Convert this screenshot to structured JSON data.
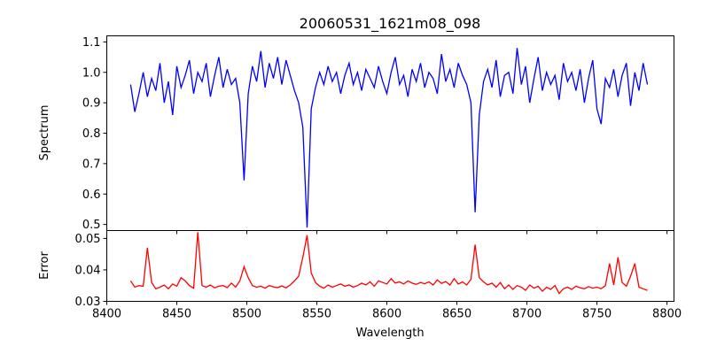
{
  "chart_data": [
    {
      "type": "line",
      "title": "20060531_1621m08_098",
      "ylabel": "Spectrum",
      "xlabel": "",
      "color": "#0000ff",
      "xlim": [
        8400,
        8805
      ],
      "ylim": [
        0.48,
        1.12
      ],
      "yticks": [
        "0.5",
        "0.6",
        "0.7",
        "0.8",
        "0.9",
        "1.0",
        "1.1"
      ],
      "x_start": 8417,
      "x_step": 3,
      "values": [
        0.96,
        0.87,
        0.93,
        1.0,
        0.92,
        0.98,
        0.94,
        1.03,
        0.9,
        0.97,
        0.86,
        1.02,
        0.95,
        0.99,
        1.04,
        0.93,
        1.0,
        0.97,
        1.03,
        0.92,
        0.99,
        1.05,
        0.95,
        1.01,
        0.96,
        0.98,
        0.9,
        0.645,
        0.93,
        1.02,
        0.97,
        1.07,
        0.95,
        1.03,
        0.98,
        1.05,
        0.96,
        1.04,
        0.99,
        0.94,
        0.9,
        0.82,
        0.49,
        0.88,
        0.95,
        1.0,
        0.96,
        1.02,
        0.97,
        1.0,
        0.93,
        0.99,
        1.03,
        0.96,
        1.0,
        0.94,
        1.01,
        0.98,
        0.95,
        1.02,
        0.97,
        0.93,
        1.0,
        1.05,
        0.96,
        0.99,
        0.92,
        1.01,
        0.97,
        1.03,
        0.95,
        1.0,
        0.98,
        0.93,
        1.06,
        0.97,
        1.01,
        0.95,
        1.03,
        0.99,
        0.96,
        0.9,
        0.54,
        0.86,
        0.97,
        1.01,
        0.95,
        1.04,
        0.92,
        0.99,
        1.0,
        0.93,
        1.08,
        0.96,
        1.02,
        0.9,
        0.98,
        1.05,
        0.94,
        1.0,
        0.96,
        0.99,
        0.91,
        1.03,
        0.97,
        1.0,
        0.94,
        1.01,
        0.9,
        0.98,
        1.04,
        0.88,
        0.83,
        0.98,
        0.95,
        1.01,
        0.92,
        0.99,
        1.03,
        0.89,
        1.0,
        0.94,
        1.03,
        0.96
      ]
    },
    {
      "type": "line",
      "title": "",
      "ylabel": "Error",
      "xlabel": "Wavelength",
      "color": "#ff0000",
      "xlim": [
        8400,
        8805
      ],
      "ylim": [
        0.03,
        0.0525
      ],
      "yticks": [
        "0.03",
        "0.04",
        "0.05"
      ],
      "xticks": [
        "8400",
        "8450",
        "8500",
        "8550",
        "8600",
        "8650",
        "8700",
        "8750",
        "8800"
      ],
      "x_start": 8417,
      "x_step": 3,
      "values": [
        0.0365,
        0.0345,
        0.035,
        0.0348,
        0.047,
        0.036,
        0.034,
        0.0345,
        0.0352,
        0.034,
        0.0355,
        0.0348,
        0.0375,
        0.0365,
        0.035,
        0.0342,
        0.052,
        0.035,
        0.0345,
        0.0352,
        0.0343,
        0.0348,
        0.035,
        0.0344,
        0.0358,
        0.0345,
        0.0365,
        0.041,
        0.0375,
        0.035,
        0.0345,
        0.0348,
        0.0342,
        0.035,
        0.0346,
        0.0344,
        0.0349,
        0.0343,
        0.0352,
        0.0365,
        0.038,
        0.044,
        0.051,
        0.039,
        0.036,
        0.0348,
        0.0342,
        0.0352,
        0.0345,
        0.035,
        0.0355,
        0.0348,
        0.0352,
        0.0345,
        0.035,
        0.0358,
        0.0352,
        0.0362,
        0.0348,
        0.0365,
        0.036,
        0.0355,
        0.0372,
        0.0358,
        0.0362,
        0.0355,
        0.0365,
        0.0358,
        0.0354,
        0.036,
        0.0356,
        0.0362,
        0.0352,
        0.0368,
        0.0357,
        0.0363,
        0.0352,
        0.0372,
        0.0355,
        0.0362,
        0.0352,
        0.037,
        0.048,
        0.0375,
        0.0362,
        0.0352,
        0.0358,
        0.0345,
        0.036,
        0.034,
        0.0352,
        0.0338,
        0.035,
        0.0345,
        0.0335,
        0.0352,
        0.0342,
        0.0348,
        0.0332,
        0.0345,
        0.0338,
        0.035,
        0.0325,
        0.034,
        0.0345,
        0.0338,
        0.0348,
        0.0343,
        0.034,
        0.0347,
        0.0342,
        0.0345,
        0.034,
        0.035,
        0.042,
        0.0352,
        0.044,
        0.036,
        0.0348,
        0.038,
        0.042,
        0.0345,
        0.034,
        0.0335
      ]
    }
  ]
}
